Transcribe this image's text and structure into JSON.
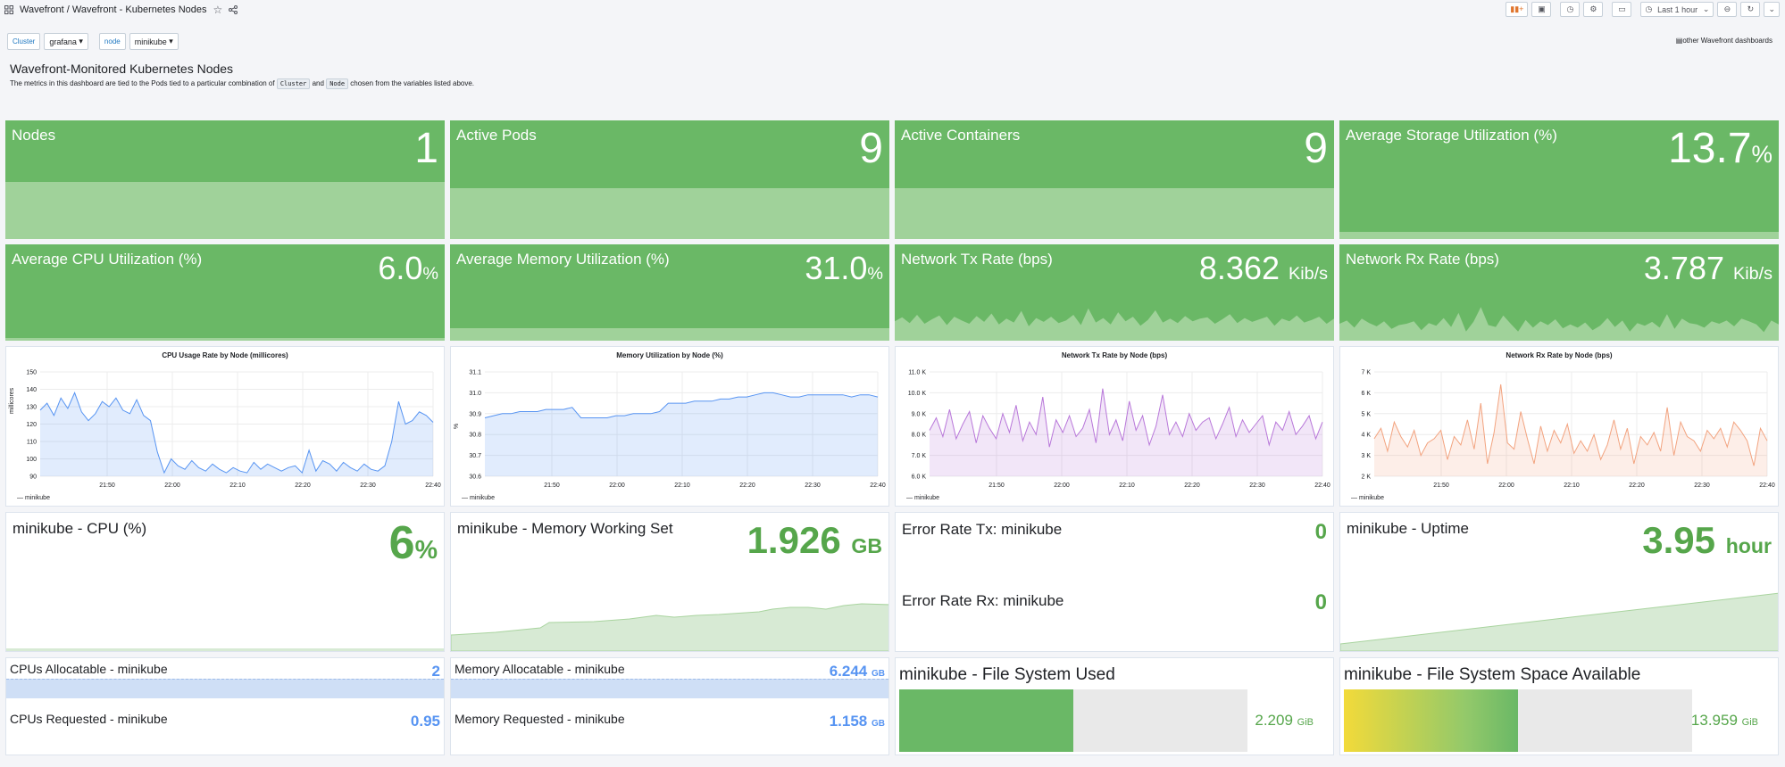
{
  "header": {
    "breadcrumb": "Wavefront / Wavefront - Kubernetes Nodes",
    "time_range": "Last 1 hour"
  },
  "variables": [
    {
      "label": "Cluster",
      "value": "grafana"
    },
    {
      "label": "node",
      "value": "minikube"
    }
  ],
  "links": {
    "other_dashboards": "other Wavefront dashboards"
  },
  "intro": {
    "title": "Wavefront-Monitored Kubernetes Nodes",
    "desc_before": "The metrics in this dashboard are tied to the Pods tied to a particular combination of",
    "code_cluster": "Cluster",
    "desc_and": "and",
    "code_node": "Node",
    "desc_after": "chosen from the variables listed above."
  },
  "stats_row1": [
    {
      "title": "Nodes",
      "value": "1",
      "unit": ""
    },
    {
      "title": "Active Pods",
      "value": "9",
      "unit": ""
    },
    {
      "title": "Active Containers",
      "value": "9",
      "unit": ""
    },
    {
      "title": "Average Storage Utilization (%)",
      "value": "13.7",
      "unit": "%"
    }
  ],
  "stats_row2": [
    {
      "title": "Average CPU Utilization (%)",
      "value": "6.0",
      "unit": "%"
    },
    {
      "title": "Average Memory Utilization (%)",
      "value": "31.0",
      "unit": "%"
    },
    {
      "title": "Network Tx Rate (bps)",
      "value": "8.362",
      "unit": "Kib/s"
    },
    {
      "title": "Network Rx Rate (bps)",
      "value": "3.787",
      "unit": "Kib/s"
    }
  ],
  "chart_data": [
    {
      "type": "line",
      "title": "CPU Usage Rate by Node (millicores)",
      "ylabel": "millicores",
      "ylim": [
        90,
        150
      ],
      "yticks": [
        "150",
        "140",
        "130",
        "120",
        "110",
        "100",
        "90"
      ],
      "xticks": [
        "21:50",
        "22:00",
        "22:10",
        "22:20",
        "22:30",
        "22:40"
      ],
      "series": [
        {
          "name": "minikube",
          "color": "#5794f2",
          "values": [
            128,
            132,
            125,
            135,
            129,
            138,
            127,
            122,
            126,
            133,
            130,
            135,
            128,
            126,
            134,
            125,
            122,
            104,
            92,
            100,
            96,
            94,
            99,
            95,
            93,
            97,
            94,
            92,
            95,
            93,
            92,
            98,
            94,
            97,
            95,
            93,
            95,
            96,
            92,
            105,
            93,
            99,
            97,
            93,
            98,
            95,
            93,
            97,
            94,
            93,
            96,
            110,
            133,
            120,
            122,
            127,
            125,
            121
          ]
        }
      ],
      "legend": "bottom-left"
    },
    {
      "type": "line",
      "title": "Memory Utilization by Node (%)",
      "ylabel": "%",
      "ylim": [
        30.6,
        31.1
      ],
      "yticks": [
        "31.1",
        "31.0",
        "30.9",
        "30.8",
        "30.7",
        "30.6"
      ],
      "xticks": [
        "21:50",
        "22:00",
        "22:10",
        "22:20",
        "22:30",
        "22:40"
      ],
      "series": [
        {
          "name": "minikube",
          "color": "#5794f2",
          "values": [
            30.88,
            30.89,
            30.9,
            30.9,
            30.91,
            30.91,
            30.91,
            30.92,
            30.92,
            30.92,
            30.93,
            30.88,
            30.88,
            30.88,
            30.88,
            30.89,
            30.89,
            30.9,
            30.9,
            30.9,
            30.91,
            30.95,
            30.95,
            30.95,
            30.96,
            30.96,
            30.96,
            30.97,
            30.97,
            30.98,
            30.98,
            30.99,
            31.0,
            31.0,
            30.99,
            30.98,
            30.98,
            30.99,
            30.99,
            30.99,
            30.99,
            30.99,
            30.98,
            30.99,
            30.99,
            30.98
          ]
        }
      ],
      "legend": "bottom-left"
    },
    {
      "type": "line",
      "title": "Network Tx Rate by Node (bps)",
      "ylim": [
        6000,
        11000
      ],
      "yticks": [
        "11.0 K",
        "10.0 K",
        "9.0 K",
        "8.0 K",
        "7.0 K",
        "6.0 K"
      ],
      "xticks": [
        "21:50",
        "22:00",
        "22:10",
        "22:20",
        "22:30",
        "22:40"
      ],
      "series": [
        {
          "name": "minikube",
          "color": "#b877d9",
          "values": [
            8200,
            8800,
            7900,
            9200,
            7800,
            8500,
            9100,
            7600,
            8900,
            8300,
            7800,
            9000,
            8100,
            9400,
            7700,
            8600,
            8000,
            9800,
            7400,
            8700,
            8100,
            8900,
            7900,
            8300,
            9200,
            7600,
            10200,
            8000,
            8700,
            7700,
            9600,
            8200,
            8900,
            7500,
            8400,
            9900,
            8000,
            8600,
            7900,
            9000,
            8200,
            8600,
            8800,
            7800,
            8500,
            9300,
            7900,
            8700,
            8100,
            8500,
            8900,
            7500,
            8600,
            8200,
            9100,
            8000,
            8400,
            8900,
            7800,
            8600
          ]
        }
      ],
      "legend": "bottom-left"
    },
    {
      "type": "line",
      "title": "Network Rx Rate by Node (bps)",
      "ylim": [
        2000,
        7000
      ],
      "yticks": [
        "7 K",
        "6 K",
        "5 K",
        "4 K",
        "3 K",
        "2 K"
      ],
      "xticks": [
        "21:50",
        "22:00",
        "22:10",
        "22:20",
        "22:30",
        "22:40"
      ],
      "series": [
        {
          "name": "minikube",
          "color": "#f2a37f",
          "values": [
            3800,
            4300,
            3200,
            4600,
            3900,
            3400,
            4200,
            3000,
            3600,
            3800,
            4200,
            2800,
            3900,
            3500,
            4700,
            3300,
            5500,
            2600,
            4100,
            6400,
            3600,
            3300,
            5100,
            3800,
            2600,
            4400,
            3200,
            4200,
            3600,
            4500,
            3100,
            3700,
            3200,
            4000,
            2800,
            3500,
            4700,
            3300,
            4300,
            2600,
            3900,
            3500,
            4100,
            3200,
            5300,
            3000,
            4600,
            3900,
            3700,
            3200,
            4200,
            3800,
            4300,
            3400,
            4600,
            4200,
            3700,
            2500,
            4300,
            3700
          ]
        }
      ],
      "legend": "bottom-left"
    }
  ],
  "node_cpu": {
    "title": "minikube - CPU (%)",
    "value": "6",
    "unit": "%"
  },
  "node_memory": {
    "title": "minikube - Memory Working Set",
    "value": "1.926",
    "unit": "GB"
  },
  "errors": {
    "tx_title": "Error Rate Tx: minikube",
    "tx_value": "0",
    "rx_title": "Error Rate Rx: minikube",
    "rx_value": "0"
  },
  "uptime": {
    "title": "minikube - Uptime",
    "value": "3.95",
    "unit": "hour"
  },
  "allocatable": [
    {
      "name": "CPUs Allocatable - minikube",
      "value": "2",
      "unit": ""
    },
    {
      "name": "CPUs Requested - minikube",
      "value": "0.95",
      "unit": ""
    },
    {
      "name": "Memory Allocatable - minikube",
      "value": "6.244",
      "unit": "GB"
    },
    {
      "name": "Memory Requested - minikube",
      "value": "1.158",
      "unit": "GB"
    }
  ],
  "fs_used": {
    "title": "minikube - File System Used",
    "value": "2.209",
    "unit": "GiB",
    "fill_fraction": 0.5
  },
  "fs_avail": {
    "title": "minikube - File System Space Available",
    "value": "13.959",
    "unit": "GiB",
    "fill_fraction": 0.5
  },
  "colors": {
    "stat_green": "#6ab866",
    "value_green": "#56a64b",
    "value_blue": "#5794f2"
  }
}
